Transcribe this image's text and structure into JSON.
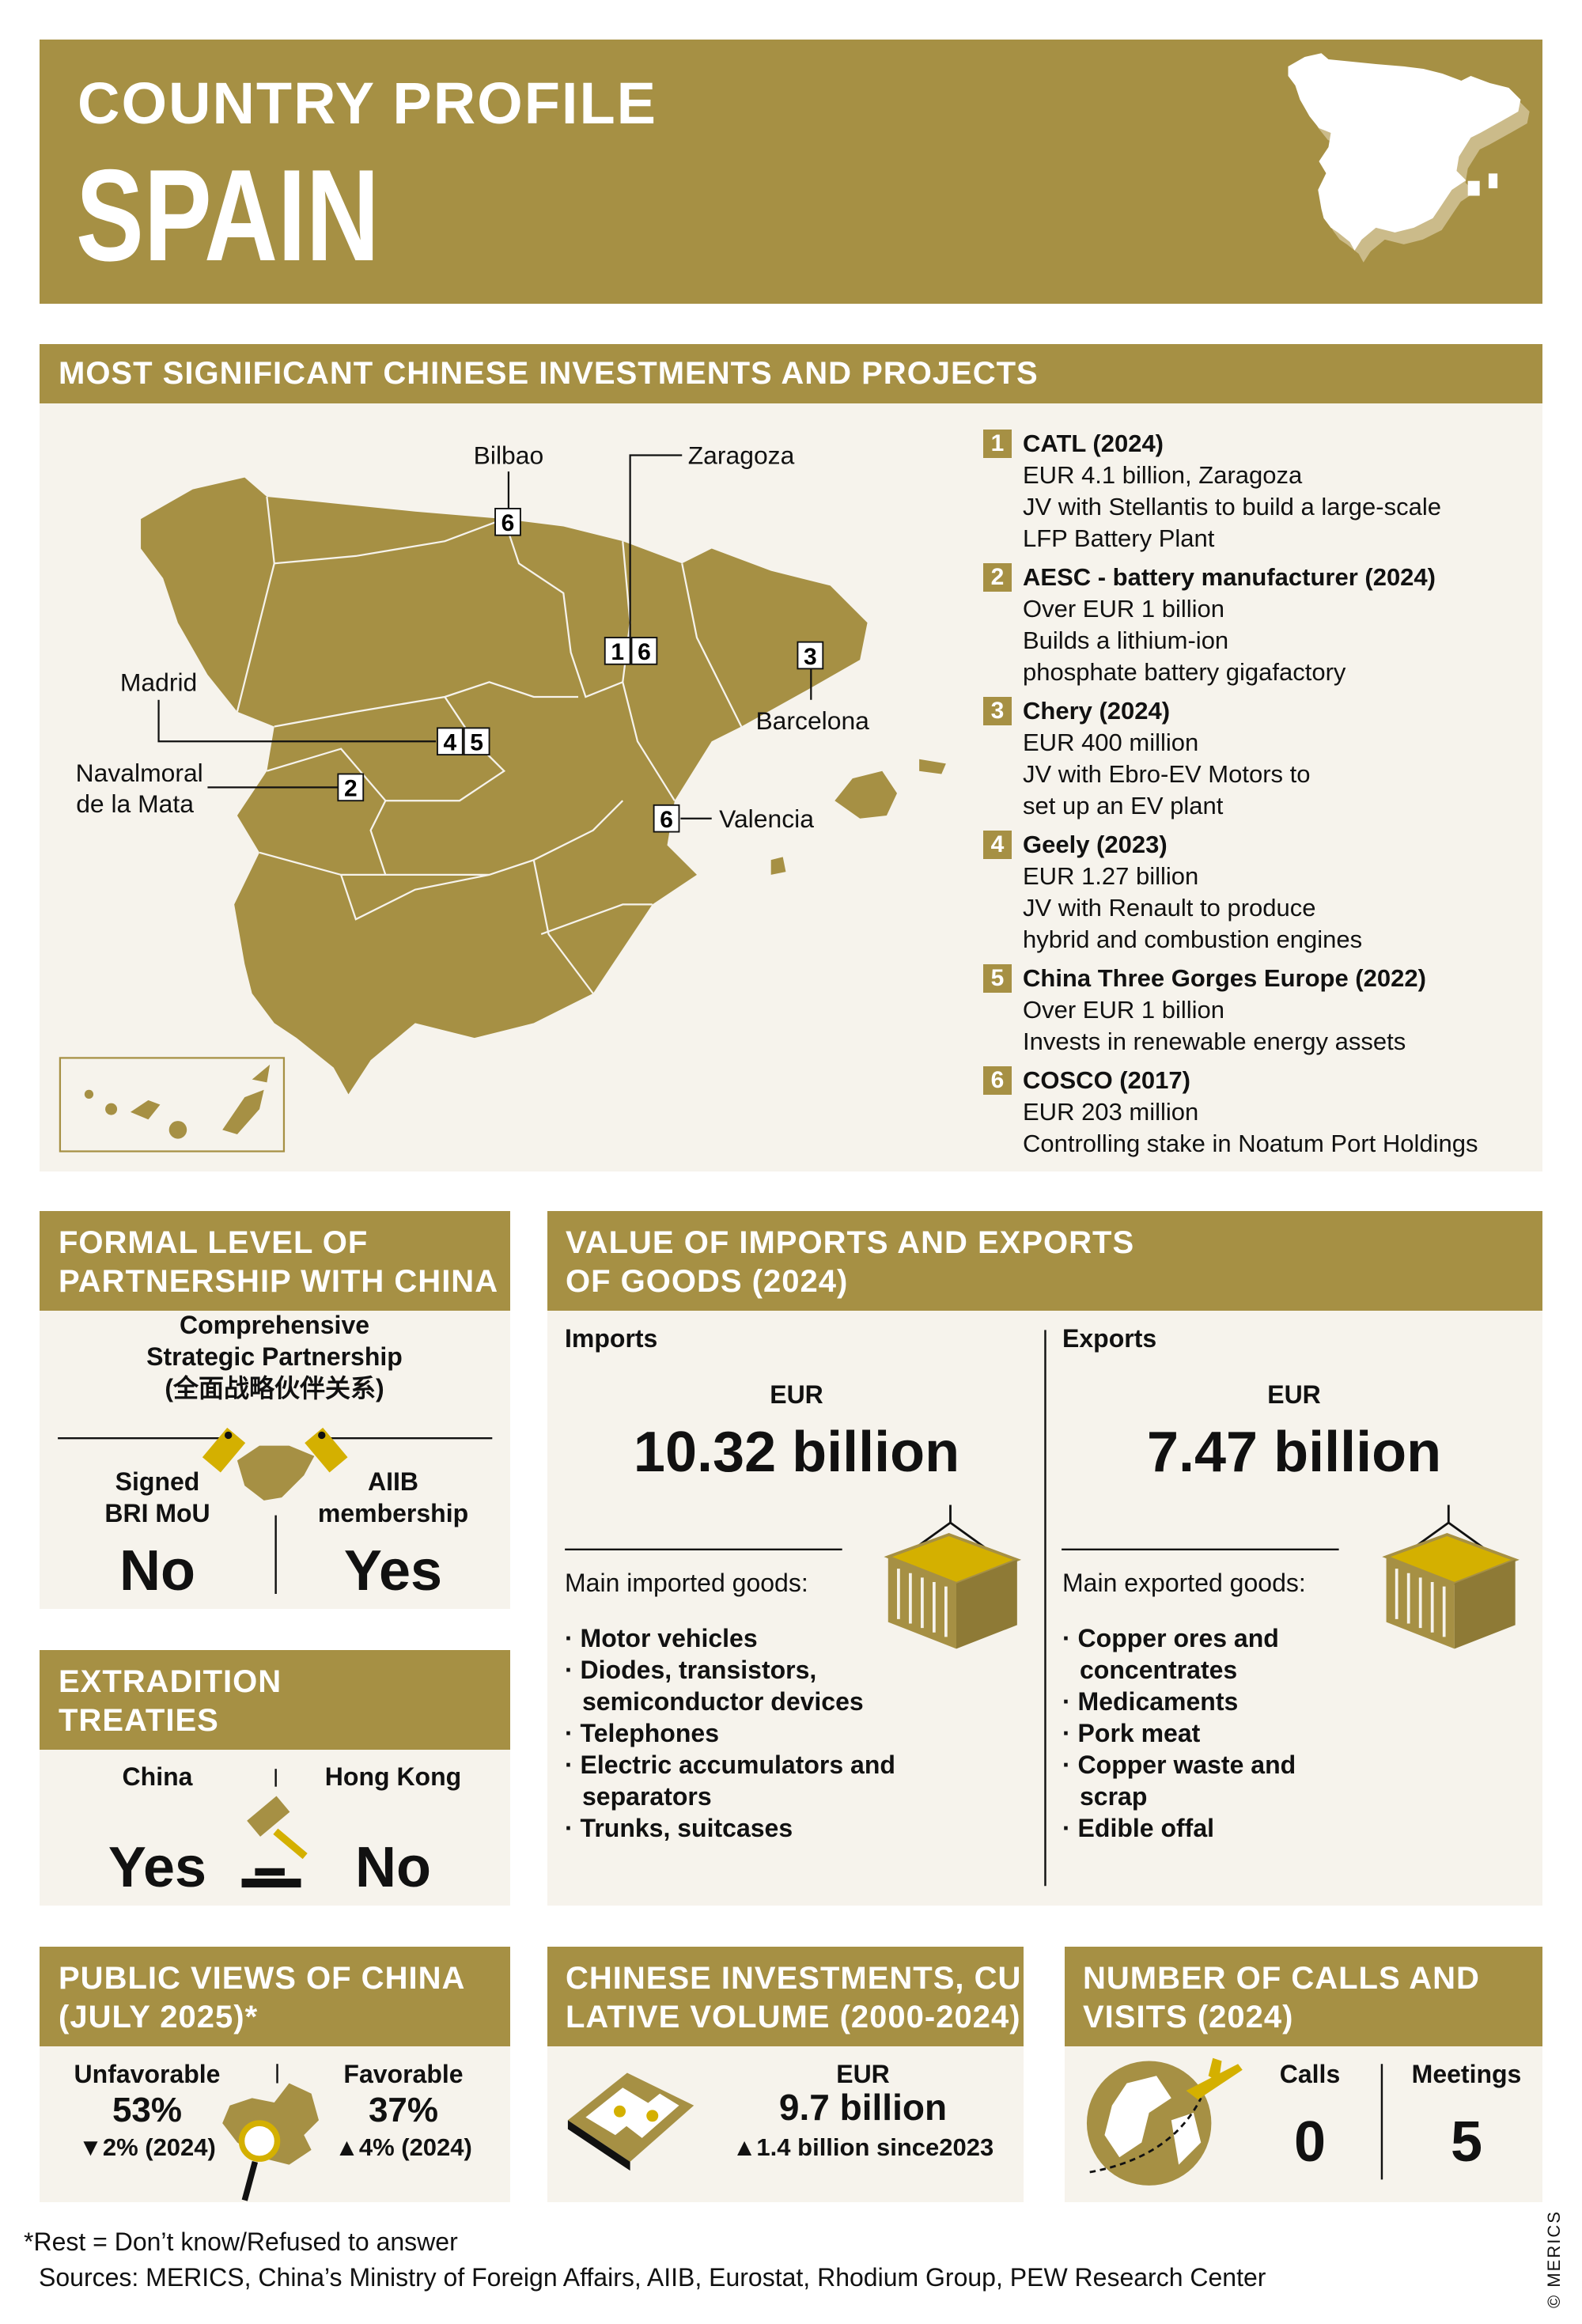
{
  "colors": {
    "brand": "#a69044",
    "panel": "#f6f3ec",
    "accent_yellow": "#d4b000"
  },
  "header": {
    "kicker": "COUNTRY PROFILE",
    "country": "SPAIN"
  },
  "investments": {
    "title": "MOST SIGNIFICANT CHINESE INVESTMENTS AND PROJECTS",
    "map_labels": {
      "bilbao": "Bilbao",
      "zaragoza": "Zaragoza",
      "madrid": "Madrid",
      "navalmoral_1": "Navalmoral",
      "navalmoral_2": "de la Mata",
      "barcelona": "Barcelona",
      "valencia": "Valencia"
    },
    "markers": {
      "bilbao": "6",
      "zaragoza_a": "1",
      "zaragoza_b": "6",
      "barcelona": "3",
      "madrid_a": "4",
      "madrid_b": "5",
      "navalmoral": "2",
      "valencia": "6"
    },
    "items": [
      {
        "num": "1",
        "title": "CATL (2024)",
        "lines": [
          "EUR 4.1 billion, Zaragoza",
          "JV with Stellantis to build a large-scale",
          "LFP Battery Plant"
        ]
      },
      {
        "num": "2",
        "title": "AESC - battery manufacturer (2024)",
        "lines": [
          "Over EUR 1 billion",
          "Builds a lithium-ion",
          "phosphate battery gigafactory"
        ]
      },
      {
        "num": "3",
        "title": "Chery (2024)",
        "lines": [
          "EUR 400 million",
          "JV with Ebro-EV Motors to",
          "set up an EV plant"
        ]
      },
      {
        "num": "4",
        "title": "Geely (2023)",
        "lines": [
          "EUR 1.27 billion",
          "JV with Renault to produce",
          "hybrid and combustion engines"
        ]
      },
      {
        "num": "5",
        "title": "China Three Gorges Europe (2022)",
        "lines": [
          "Over EUR 1 billion",
          "Invests in renewable energy assets"
        ]
      },
      {
        "num": "6",
        "title": "COSCO (2017)",
        "lines": [
          "EUR 203 million",
          "Controlling stake in Noatum Port Holdings"
        ]
      }
    ]
  },
  "partnership": {
    "title_1": "FORMAL LEVEL OF",
    "title_2": "PARTNERSHIP WITH CHINA",
    "level_1": "Comprehensive",
    "level_2": "Strategic Partnership",
    "level_3": "(全面战略伙伴关系)",
    "bri_label_1": "Signed",
    "bri_label_2": "BRI MoU",
    "bri_value": "No",
    "aiib_label_1": "AIIB",
    "aiib_label_2": "membership",
    "aiib_value": "Yes"
  },
  "extradition": {
    "title_1": "EXTRADITION",
    "title_2": "TREATIES",
    "china_label": "China",
    "china_value": "Yes",
    "hk_label": "Hong Kong",
    "hk_value": "No"
  },
  "trade": {
    "title_1": "VALUE OF IMPORTS AND EXPORTS",
    "title_2": "OF GOODS (2024)",
    "imports": {
      "label": "Imports",
      "currency": "EUR",
      "value": "10.32 billion",
      "goods_title": "Main imported goods:",
      "goods": [
        "Motor vehicles",
        "Diodes, transistors, semiconductor devices",
        "Telephones",
        "Electric accumulators and separators",
        "Trunks, suitcases"
      ]
    },
    "exports": {
      "label": "Exports",
      "currency": "EUR",
      "value": "7.47 billion",
      "goods_title": "Main exported goods:",
      "goods": [
        "Copper ores and concentrates",
        "Medicaments",
        "Pork meat",
        "Copper waste and scrap",
        "Edible offal"
      ]
    }
  },
  "public_views": {
    "title_1": "PUBLIC VIEWS OF CHINA",
    "title_2": "(JULY 2025)*",
    "unfavorable_label": "Unfavorable",
    "unfavorable_value": "53%",
    "unfavorable_change": "▼2% (2024)",
    "favorable_label": "Favorable",
    "favorable_value": "37%",
    "favorable_change": "▲4% (2024)"
  },
  "cumulative": {
    "title_1": "CHINESE INVESTMENTS, CUMU-",
    "title_2": "LATIVE VOLUME (2000-2024)",
    "currency": "EUR",
    "value": "9.7 billion",
    "change": "▲1.4 billion since2023"
  },
  "visits": {
    "title_1": "NUMBER OF CALLS AND",
    "title_2": "VISITS (2024)",
    "calls_label": "Calls",
    "calls_value": "0",
    "meetings_label": "Meetings",
    "meetings_value": "5"
  },
  "footer": {
    "note": "*Rest = Don’t know/Refused to answer",
    "sources": "Sources: MERICS, China’s Ministry of Foreign Affairs, AIIB, Eurostat, Rhodium Group, PEW Research Center",
    "copyright": "© MERICS"
  }
}
